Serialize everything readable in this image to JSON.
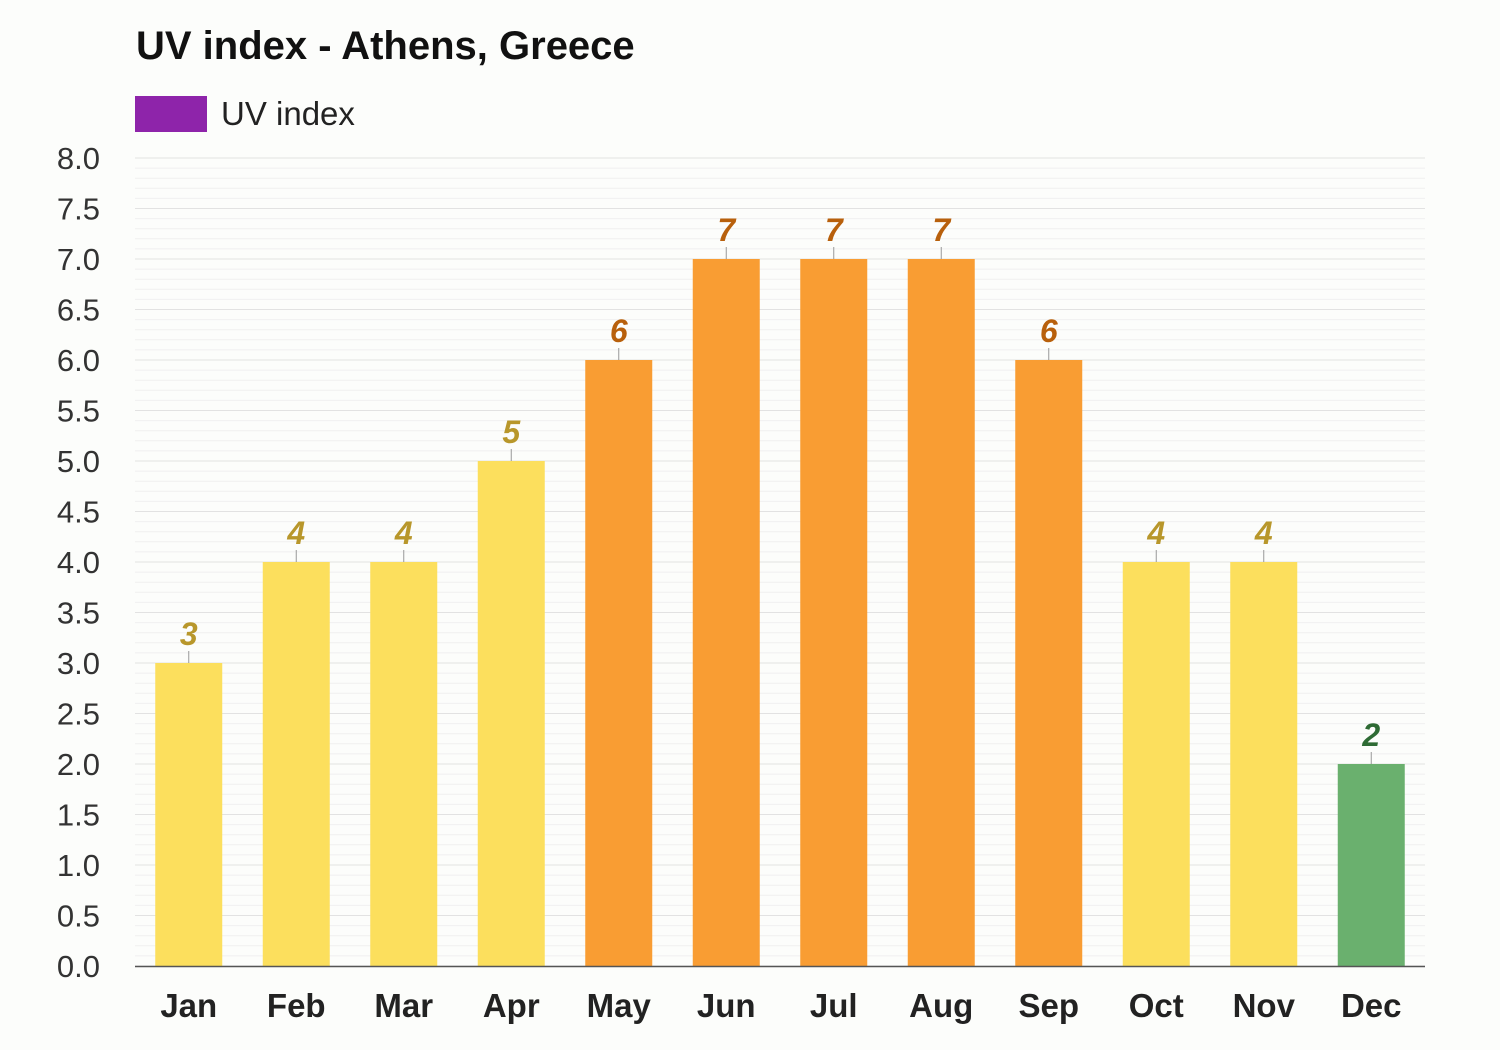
{
  "chart_data": {
    "type": "bar",
    "title": "UV index - Athens, Greece",
    "legend": [
      {
        "name": "UV index",
        "color": "#8e24aa"
      }
    ],
    "legend_placement": "top-left",
    "categories": [
      "Jan",
      "Feb",
      "Mar",
      "Apr",
      "May",
      "Jun",
      "Jul",
      "Aug",
      "Sep",
      "Oct",
      "Nov",
      "Dec"
    ],
    "series": [
      {
        "name": "UV index",
        "values": [
          3,
          4,
          4,
          5,
          6,
          7,
          7,
          7,
          6,
          4,
          4,
          2
        ]
      }
    ],
    "data_labels": [
      "3",
      "4",
      "4",
      "5",
      "6",
      "7",
      "7",
      "7",
      "6",
      "4",
      "4",
      "2"
    ],
    "y_ticks": [
      "0.0",
      "0.5",
      "1.0",
      "1.5",
      "2.0",
      "2.5",
      "3.0",
      "3.5",
      "4.0",
      "4.5",
      "5.0",
      "5.5",
      "6.0",
      "6.5",
      "7.0",
      "7.5",
      "8.0"
    ],
    "ylim": [
      0,
      8
    ],
    "grid": true,
    "colors": {
      "moderate_bar": "#fcdf5d",
      "moderate_label": "#b8972b",
      "high_bar": "#f99d33",
      "high_label": "#b8600c",
      "low_bar": "#6ab06e",
      "low_label": "#2e6b34"
    }
  }
}
